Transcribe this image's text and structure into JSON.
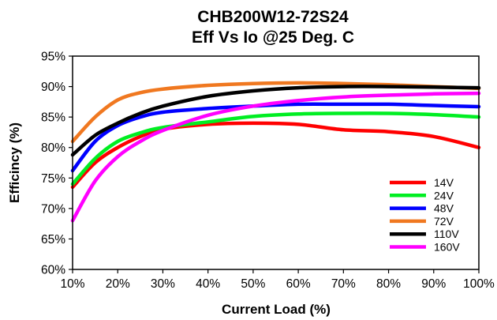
{
  "chart_data": {
    "type": "line",
    "title": "CHB200W12-72S24",
    "subtitle": "Eff Vs Io @25 Deg. C",
    "xlabel": "Current Load (%)",
    "ylabel": "Efficincy (%)",
    "xlim": [
      10,
      100
    ],
    "ylim": [
      60,
      95
    ],
    "x_ticks": [
      "10%",
      "20%",
      "30%",
      "40%",
      "50%",
      "60%",
      "70%",
      "80%",
      "90%",
      "100%"
    ],
    "y_ticks": [
      "60%",
      "65%",
      "70%",
      "75%",
      "80%",
      "85%",
      "90%",
      "95%"
    ],
    "x_tick_values": [
      10,
      20,
      30,
      40,
      50,
      60,
      70,
      80,
      90,
      100
    ],
    "y_tick_values": [
      60,
      65,
      70,
      75,
      80,
      85,
      90,
      95
    ],
    "grid": false,
    "legend_position": "bottom-right",
    "x": [
      10,
      15,
      20,
      25,
      30,
      40,
      50,
      60,
      70,
      80,
      90,
      100
    ],
    "series": [
      {
        "name": "14V",
        "color": "#ff0000",
        "values": [
          73.5,
          77.5,
          80.0,
          81.8,
          83.0,
          83.8,
          84.0,
          83.8,
          82.9,
          82.6,
          81.8,
          80.0
        ]
      },
      {
        "name": "24V",
        "color": "#00ee22",
        "values": [
          74.0,
          78.2,
          81.0,
          82.4,
          83.3,
          84.2,
          85.1,
          85.5,
          85.6,
          85.6,
          85.4,
          85.0
        ]
      },
      {
        "name": "48V",
        "color": "#0000ff",
        "values": [
          76.2,
          81.0,
          83.6,
          85.0,
          85.8,
          86.4,
          86.8,
          87.1,
          87.1,
          87.1,
          86.9,
          86.7
        ]
      },
      {
        "name": "72V",
        "color": "#f07820",
        "values": [
          81.0,
          85.0,
          87.8,
          89.0,
          89.6,
          90.2,
          90.5,
          90.6,
          90.5,
          90.3,
          90.0,
          89.7
        ]
      },
      {
        "name": "110V",
        "color": "#000000",
        "values": [
          78.8,
          82.0,
          84.0,
          85.6,
          86.8,
          88.4,
          89.3,
          89.8,
          90.0,
          90.0,
          89.9,
          89.8
        ]
      },
      {
        "name": "160V",
        "color": "#ff00ff",
        "values": [
          68.0,
          74.5,
          78.5,
          81.0,
          82.8,
          85.3,
          86.8,
          87.7,
          88.3,
          88.6,
          88.8,
          88.9
        ]
      }
    ]
  }
}
